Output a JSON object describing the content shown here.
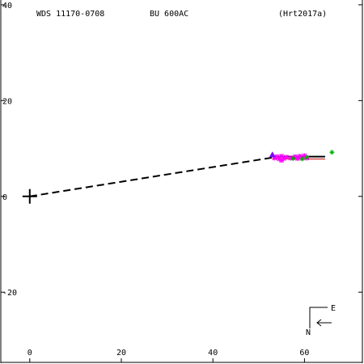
{
  "header": {
    "wds_id": "WDS 11170-0708",
    "discoverer": "BU  600AC",
    "reference": "(Hrt2017a)"
  },
  "compass": {
    "east_label": "E",
    "north_label": "N"
  },
  "chart_data": {
    "type": "scatter",
    "title": "",
    "xlabel": "",
    "ylabel": "",
    "xlim": [
      -6.5,
      73
    ],
    "ylim": [
      -35,
      41
    ],
    "x_ticks": [
      0,
      20,
      40,
      60
    ],
    "y_ticks": [
      40,
      20,
      0,
      -20
    ],
    "primary": {
      "x": 0,
      "y": 0,
      "marker": "plus"
    },
    "orbit_segment": {
      "x": [
        0,
        53
      ],
      "y": [
        0,
        8.1
      ]
    },
    "fit_line": {
      "x": [
        53,
        64.5
      ],
      "y": [
        8.3,
        8.3
      ]
    },
    "series": [
      {
        "color": "#ff00ff",
        "marker": "star",
        "points": [
          {
            "x": 53.5,
            "y": 8.0
          },
          {
            "x": 54.0,
            "y": 8.3
          },
          {
            "x": 54.5,
            "y": 7.8
          },
          {
            "x": 55.0,
            "y": 8.4
          },
          {
            "x": 55.5,
            "y": 7.9
          },
          {
            "x": 56.0,
            "y": 8.2
          },
          {
            "x": 57.0,
            "y": 8.0
          },
          {
            "x": 58.0,
            "y": 8.3
          },
          {
            "x": 58.5,
            "y": 7.9
          },
          {
            "x": 59.0,
            "y": 8.4
          },
          {
            "x": 59.5,
            "y": 8.1
          },
          {
            "x": 60.0,
            "y": 8.5
          },
          {
            "x": 60.5,
            "y": 8.0
          },
          {
            "x": 55.0,
            "y": 7.5
          }
        ]
      },
      {
        "color": "#00aa00",
        "marker": "plus",
        "points": [
          {
            "x": 57.5,
            "y": 7.9
          },
          {
            "x": 59.5,
            "y": 7.8
          },
          {
            "x": 60.5,
            "y": 8.2
          },
          {
            "x": 66.0,
            "y": 9.2
          }
        ]
      },
      {
        "color": "#8000ff",
        "marker": "triangle",
        "points": [
          {
            "x": 53.0,
            "y": 8.7
          }
        ]
      }
    ]
  }
}
